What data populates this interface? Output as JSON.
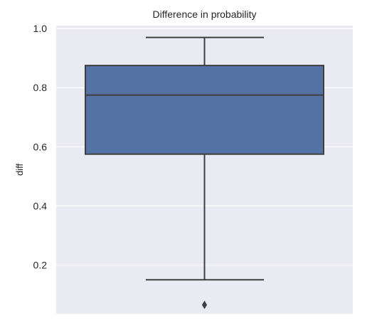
{
  "chart_data": {
    "type": "box",
    "title": "Difference in probability",
    "xlabel": "",
    "ylabel": "diff",
    "ylim": [
      0.035,
      1.01
    ],
    "yticks": [
      0.2,
      0.4,
      0.6,
      0.8,
      1.0
    ],
    "ytick_labels": [
      "0.2",
      "0.4",
      "0.6",
      "0.8",
      "1.0"
    ],
    "grid": true,
    "box": {
      "whisker_low": 0.15,
      "q1": 0.575,
      "median": 0.775,
      "q3": 0.875,
      "whisker_high": 0.97,
      "outliers": [
        0.065
      ]
    },
    "colors": {
      "background": "#eaeaf2",
      "box_fill": "#5572a4",
      "line": "#3f3f3f",
      "grid": "#ffffff"
    }
  }
}
